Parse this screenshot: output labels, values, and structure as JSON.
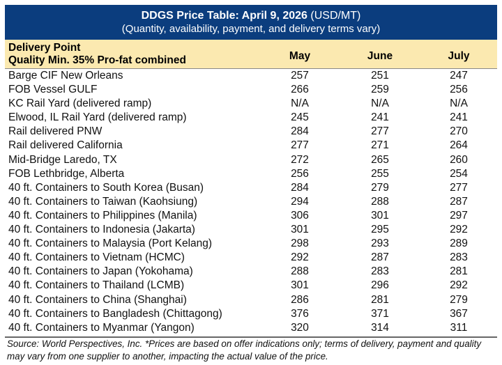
{
  "title": {
    "bold": "DDGS Price Table: April 9, 2026",
    "unit": " (USD/MT)",
    "subtitle": "(Quantity, availability, payment, and delivery terms vary)"
  },
  "header": {
    "line1": "Delivery Point",
    "line2": "Quality Min. 35% Pro-fat combined",
    "months": [
      "May",
      "June",
      "July"
    ]
  },
  "rows": [
    {
      "name": "Barge CIF New Orleans",
      "v": [
        "257",
        "251",
        "247"
      ]
    },
    {
      "name": "FOB Vessel GULF",
      "v": [
        "266",
        "259",
        "256"
      ]
    },
    {
      "name": "KC Rail Yard (delivered ramp)",
      "v": [
        "N/A",
        "N/A",
        "N/A"
      ]
    },
    {
      "name": "Elwood, IL Rail Yard (delivered ramp)",
      "v": [
        "245",
        "241",
        "241"
      ]
    },
    {
      "name": "Rail delivered PNW",
      "v": [
        "284",
        "277",
        "270"
      ]
    },
    {
      "name": "Rail delivered California",
      "v": [
        "277",
        "271",
        "264"
      ]
    },
    {
      "name": "Mid-Bridge Laredo, TX",
      "v": [
        "272",
        "265",
        "260"
      ]
    },
    {
      "name": "FOB Lethbridge, Alberta",
      "v": [
        "256",
        "255",
        "254"
      ]
    },
    {
      "name": "40 ft. Containers to South Korea (Busan)",
      "v": [
        "284",
        "279",
        "277"
      ]
    },
    {
      "name": "40 ft. Containers to Taiwan (Kaohsiung)",
      "v": [
        "294",
        "288",
        "287"
      ]
    },
    {
      "name": "40 ft. Containers to Philippines (Manila)",
      "v": [
        "306",
        "301",
        "297"
      ]
    },
    {
      "name": "40 ft. Containers to Indonesia (Jakarta)",
      "v": [
        "301",
        "295",
        "292"
      ]
    },
    {
      "name": "40 ft. Containers to Malaysia (Port Kelang)",
      "v": [
        "298",
        "293",
        "289"
      ]
    },
    {
      "name": "40 ft. Containers to Vietnam (HCMC)",
      "v": [
        "292",
        "287",
        "283"
      ]
    },
    {
      "name": "40 ft. Containers to Japan (Yokohama)",
      "v": [
        "288",
        "283",
        "281"
      ]
    },
    {
      "name": "40 ft. Containers to Thailand (LCMB)",
      "v": [
        "301",
        "296",
        "292"
      ]
    },
    {
      "name": "40 ft. Containers to China (Shanghai)",
      "v": [
        "286",
        "281",
        "279"
      ]
    },
    {
      "name": "40 ft. Containers to Bangladesh (Chittagong)",
      "v": [
        "376",
        "371",
        "367"
      ]
    },
    {
      "name": "40 ft. Containers to Myanmar (Yangon)",
      "v": [
        "320",
        "314",
        "311"
      ]
    }
  ],
  "footer": "Source: World Perspectives, Inc. *Prices are based on offer indications only; terms of delivery, payment and quality may vary from one supplier to another, impacting the actual value of the price."
}
